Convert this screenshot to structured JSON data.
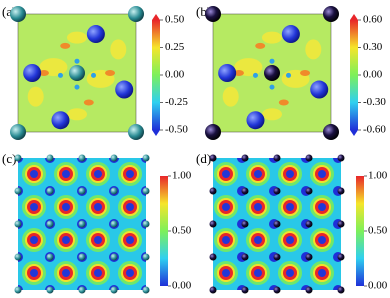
{
  "panels": [
    {
      "label": "(a)",
      "colorbar_ticks": [
        "0.50",
        "0.25",
        "0.00",
        "-0.25",
        "-0.50"
      ]
    },
    {
      "label": "(b)",
      "colorbar_ticks": [
        "0.60",
        "0.30",
        "0.00",
        "-0.30",
        "-0.60"
      ]
    },
    {
      "label": "(c)",
      "colorbar_ticks": [
        "1.00",
        "0.50",
        "0.00"
      ]
    },
    {
      "label": "(d)",
      "colorbar_ticks": [
        "1.00",
        "0.50",
        "0.00"
      ]
    }
  ]
}
